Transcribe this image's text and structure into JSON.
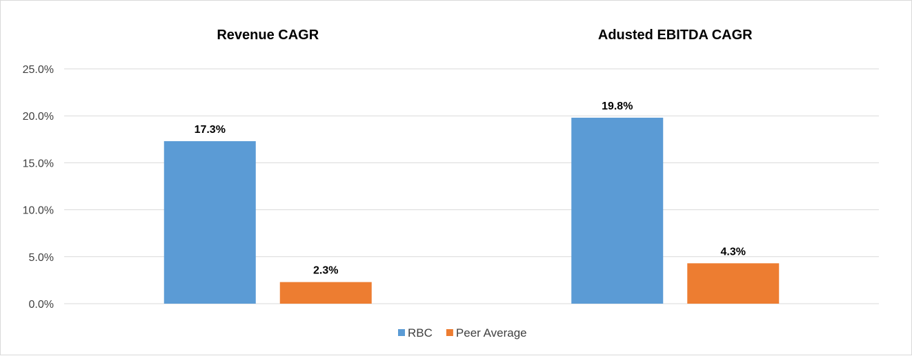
{
  "chart_data": {
    "type": "bar",
    "title": "",
    "xlabel": "",
    "ylabel": "",
    "ylim": [
      0,
      25
    ],
    "yticks": [
      "0.0%",
      "5.0%",
      "10.0%",
      "15.0%",
      "20.0%",
      "25.0%"
    ],
    "grid": true,
    "legend_position": "bottom",
    "categories": [
      "Revenue CAGR",
      "Adusted EBITDA CAGR"
    ],
    "series": [
      {
        "name": "RBC",
        "values": [
          17.3,
          19.8
        ],
        "labels": [
          "17.3%",
          "19.8%"
        ],
        "color": "#5B9BD5"
      },
      {
        "name": "Peer Average",
        "values": [
          2.3,
          4.3
        ],
        "labels": [
          "2.3%",
          "4.3%"
        ],
        "color": "#ED7D31"
      }
    ]
  }
}
